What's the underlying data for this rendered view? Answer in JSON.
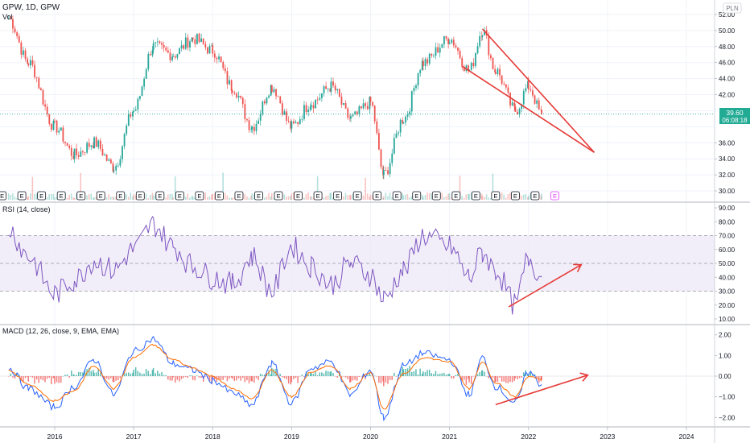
{
  "header": {
    "symbol_label": "GPW, 1D, GPW",
    "volume_label": "Vol",
    "currency_badge": "PLN"
  },
  "price_badge": {
    "price": "39.60",
    "countdown": "06:08:18",
    "color": "#22ab94"
  },
  "colors": {
    "up": "#26a69a",
    "down": "#ef5350",
    "rsi": "#7e57c2",
    "rsi_band": "#ede7f6",
    "macd_line": "#2962ff",
    "signal_line": "#ff6d00",
    "annotation": "#e53935",
    "grid": "#f0f3fa",
    "text": "#131722"
  },
  "x_axis": {
    "ticks": [
      "2016",
      "2017",
      "2018",
      "2019",
      "2020",
      "2021",
      "2022",
      "2023",
      "2024"
    ]
  },
  "events_label": "E",
  "panes": {
    "price": {
      "ticks": [
        "52.00",
        "50.00",
        "48.00",
        "46.00",
        "44.00",
        "42.00",
        "40.00",
        "38.00",
        "36.00",
        "34.00",
        "32.00",
        "30.00"
      ]
    },
    "rsi": {
      "title": "RSI (14, close)",
      "ticks": [
        "90.00",
        "80.00",
        "70.00",
        "60.00",
        "50.00",
        "40.00",
        "30.00",
        "20.00",
        "10.00"
      ]
    },
    "macd": {
      "title": "MACD (12, 26, close, 9, EMA, EMA)",
      "ticks": [
        "2.00",
        "1.00",
        "0.00",
        "−1.00",
        "−2.00"
      ]
    }
  },
  "chart_data": [
    {
      "type": "candlestick",
      "title": "GPW, 1D, GPW",
      "ylim": [
        29.5,
        53
      ],
      "x": [
        "2015-06",
        "2015-09",
        "2016-01",
        "2016-04",
        "2016-07",
        "2016-10",
        "2017-01",
        "2017-04",
        "2017-07",
        "2017-10",
        "2018-01",
        "2018-04",
        "2018-07",
        "2018-10",
        "2019-01",
        "2019-04",
        "2019-07",
        "2019-10",
        "2020-01",
        "2020-03",
        "2020-06",
        "2020-09",
        "2021-01",
        "2021-04",
        "2021-06",
        "2021-08",
        "2021-11",
        "2022-01",
        "2022-03"
      ],
      "close": [
        51.5,
        46,
        38,
        34.5,
        36,
        33,
        40,
        48,
        47,
        49,
        47.5,
        43,
        38,
        43,
        38,
        41,
        43,
        39,
        41,
        32,
        39,
        46,
        49,
        45,
        50,
        45,
        40,
        43,
        39.6
      ],
      "annotations": [
        {
          "type": "wedge_upper",
          "from": [
            "2021-06",
            50.2
          ],
          "to": [
            "2022-11",
            34.8
          ]
        },
        {
          "type": "wedge_lower",
          "from": [
            "2021-03",
            45.5
          ],
          "to": [
            "2022-11",
            34.8
          ]
        }
      ]
    },
    {
      "type": "line",
      "title": "RSI (14, close)",
      "ylim": [
        10,
        90
      ],
      "bands": [
        30,
        50,
        70
      ],
      "series": [
        {
          "values": [
            75,
            55,
            28,
            38,
            52,
            45,
            60,
            78,
            62,
            48,
            40,
            35,
            55,
            30,
            62,
            48,
            35,
            50,
            42,
            24,
            45,
            70,
            62,
            40,
            58,
            45,
            20,
            54,
            40
          ]
        }
      ],
      "annotations": [
        {
          "type": "arrow",
          "from": [
            "2021-10",
            18.7
          ],
          "to": [
            "2022-09",
            49
          ]
        }
      ]
    },
    {
      "type": "line",
      "title": "MACD (12, 26, close, 9, EMA, EMA)",
      "ylim": [
        -2.3,
        2.3
      ],
      "series": [
        {
          "name": "MACD",
          "values": [
            0.4,
            -0.6,
            -1.5,
            -0.5,
            0.8,
            -0.9,
            1.2,
            1.8,
            0.6,
            0.3,
            -0.2,
            -0.8,
            -1.4,
            0.6,
            -1.3,
            0.4,
            0.7,
            -0.9,
            0.3,
            -2.0,
            0.5,
            1.1,
            0.8,
            -0.9,
            0.9,
            -0.5,
            -1.3,
            0.2,
            -0.4
          ]
        },
        {
          "name": "Signal",
          "values": [
            0.3,
            -0.4,
            -1.2,
            -0.7,
            0.5,
            -0.6,
            0.9,
            1.5,
            0.8,
            0.4,
            0,
            -0.6,
            -1.1,
            0.3,
            -1.0,
            0.2,
            0.5,
            -0.6,
            0.2,
            -1.6,
            0.1,
            0.9,
            0.7,
            -0.6,
            0.7,
            -0.3,
            -1.0,
            0,
            -0.2
          ]
        }
      ],
      "annotations": [
        {
          "type": "arrow",
          "from": [
            "2021-08",
            -1.38
          ],
          "to": [
            "2022-10",
            0.05
          ]
        }
      ]
    }
  ]
}
